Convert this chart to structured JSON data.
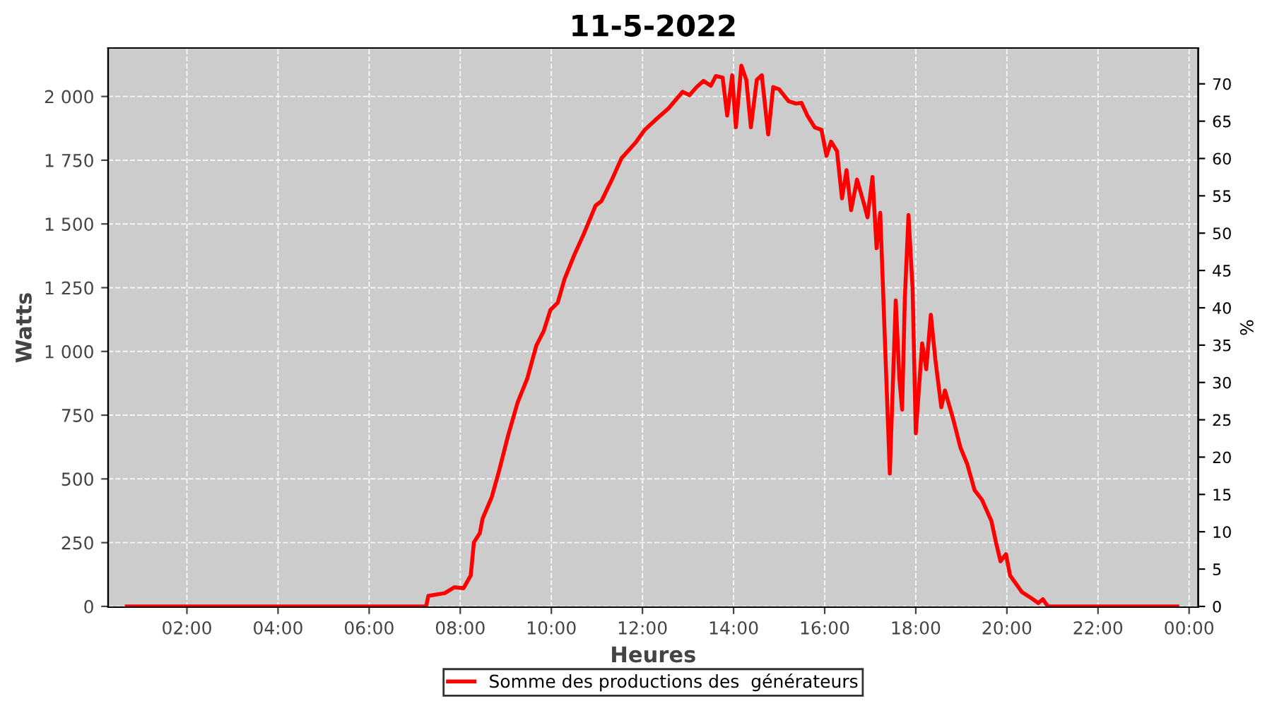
{
  "chart_data": {
    "type": "line",
    "title": "11-5-2022",
    "xlabel": "Heures",
    "ylabel": "Watts",
    "y2label": "%",
    "x": [
      0.68,
      7.25,
      7.3,
      7.66,
      7.87,
      8.07,
      8.23,
      8.3,
      8.43,
      8.49,
      8.69,
      8.85,
      9.05,
      9.26,
      9.47,
      9.67,
      9.83,
      9.98,
      10.14,
      10.29,
      10.5,
      10.71,
      10.97,
      11.1,
      11.33,
      11.54,
      11.85,
      12.05,
      12.31,
      12.57,
      12.88,
      13.03,
      13.19,
      13.34,
      13.5,
      13.61,
      13.76,
      13.86,
      13.97,
      14.05,
      14.17,
      14.28,
      14.38,
      14.51,
      14.62,
      14.76,
      14.87,
      15.0,
      15.21,
      15.36,
      15.49,
      15.62,
      15.78,
      15.93,
      16.04,
      16.14,
      16.27,
      16.38,
      16.48,
      16.58,
      16.71,
      16.86,
      16.94,
      17.05,
      17.14,
      17.22,
      17.33,
      17.43,
      17.56,
      17.64,
      17.7,
      17.76,
      17.84,
      17.93,
      18.0,
      18.14,
      18.23,
      18.33,
      18.43,
      18.56,
      18.64,
      18.82,
      18.98,
      19.13,
      19.29,
      19.45,
      19.66,
      19.76,
      19.86,
      19.98,
      20.07,
      20.33,
      20.53,
      20.69,
      20.79,
      20.9,
      23.74
    ],
    "series": [
      {
        "name": "Somme des productions des  générateurs",
        "color": "#ff0000",
        "values": [
          0,
          0,
          41,
          52,
          75,
          71,
          121,
          251,
          288,
          344,
          428,
          530,
          670,
          800,
          893,
          1023,
          1079,
          1163,
          1191,
          1284,
          1377,
          1460,
          1572,
          1590,
          1674,
          1758,
          1819,
          1869,
          1912,
          1953,
          2018,
          2005,
          2037,
          2061,
          2042,
          2080,
          2074,
          1925,
          2083,
          1879,
          2121,
          2065,
          1879,
          2065,
          2083,
          1851,
          2037,
          2028,
          1981,
          1972,
          1975,
          1925,
          1879,
          1869,
          1767,
          1823,
          1786,
          1600,
          1711,
          1554,
          1674,
          1581,
          1526,
          1684,
          1405,
          1544,
          1005,
          521,
          1200,
          893,
          772,
          1209,
          1535,
          1247,
          679,
          1032,
          930,
          1144,
          968,
          781,
          847,
          735,
          623,
          558,
          456,
          419,
          335,
          251,
          177,
          205,
          121,
          56,
          33,
          13,
          28,
          0,
          0
        ]
      }
    ],
    "xlim": [
      0.27,
      24.2
    ],
    "xticks": [
      {
        "value": 2,
        "label": "02:00"
      },
      {
        "value": 4,
        "label": "04:00"
      },
      {
        "value": 6,
        "label": "06:00"
      },
      {
        "value": 8,
        "label": "08:00"
      },
      {
        "value": 10,
        "label": "10:00"
      },
      {
        "value": 12,
        "label": "12:00"
      },
      {
        "value": 14,
        "label": "14:00"
      },
      {
        "value": 16,
        "label": "16:00"
      },
      {
        "value": 18,
        "label": "18:00"
      },
      {
        "value": 20,
        "label": "20:00"
      },
      {
        "value": 22,
        "label": "22:00"
      },
      {
        "value": 24,
        "label": "00:00"
      }
    ],
    "ylim": [
      -3,
      2190
    ],
    "yticks": [
      0,
      250,
      500,
      750,
      {
        "value": 1000,
        "label": "1 000"
      },
      {
        "value": 1250,
        "label": "1 250"
      },
      {
        "value": 1500,
        "label": "1 500"
      },
      {
        "value": 1750,
        "label": "1 750"
      },
      {
        "value": 2000,
        "label": "2 000"
      }
    ],
    "y2lim": [
      -0.1,
      74.8
    ],
    "y2ticks": [
      0,
      5,
      10,
      15,
      20,
      25,
      30,
      35,
      40,
      45,
      50,
      55,
      60,
      65,
      70
    ],
    "grid": true,
    "legend": "bottom",
    "line_style": "solid"
  }
}
